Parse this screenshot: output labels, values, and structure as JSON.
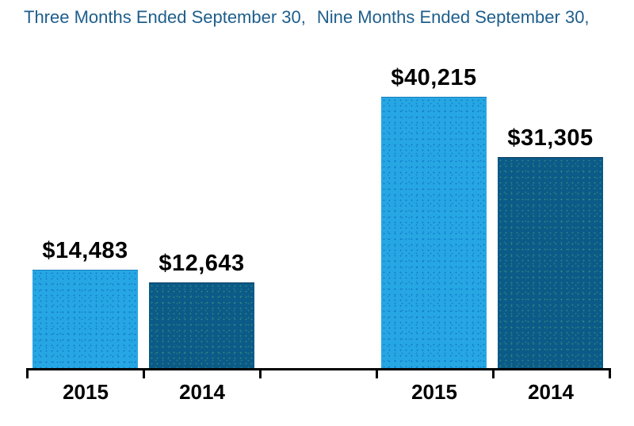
{
  "chart_data": {
    "type": "bar",
    "title": "Three Months Ended September 30,  Nine Months Ended September 30,",
    "groups": [
      {
        "title": "Three Months Ended September 30,",
        "categories": [
          "2015",
          "2014"
        ],
        "values": [
          14483,
          12643
        ],
        "value_labels": [
          "$14,483",
          "$12,643"
        ]
      },
      {
        "title": "Nine Months Ended September 30,",
        "categories": [
          "2015",
          "2014"
        ],
        "values": [
          40215,
          31305
        ],
        "value_labels": [
          "$40,215",
          "$31,305"
        ]
      }
    ],
    "ylim": [
      0,
      40215
    ],
    "grid": false,
    "legend": "none",
    "y_axis_visible": false,
    "colors": {
      "series_2015": "#29A9E2",
      "series_2014": "#0B5A88",
      "title_text": "#1E5E8C",
      "value_label_text": "#000000",
      "axis": "#000000"
    }
  }
}
